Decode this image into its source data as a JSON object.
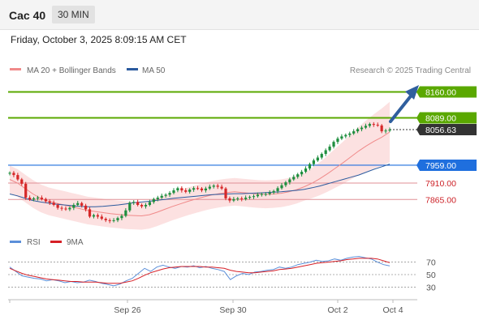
{
  "header": {
    "title": "Cac 40",
    "interval": "30 MIN",
    "timestamp": "Friday, October 3, 2025 8:09:15 AM CET"
  },
  "legend": {
    "ma20_label": "MA 20 + Bollinger Bands",
    "ma50_label": "MA 50",
    "credit": "Research © 2025 Trading Central"
  },
  "rsi_legend": {
    "rsi_label": "RSI",
    "ma_label": "9MA"
  },
  "colors": {
    "green_level": "#5aa800",
    "blue_level": "#1f6fde",
    "red_level": "#e08f96",
    "red_text": "#cc1f25",
    "current_price": "#333333",
    "ma20": "#f08a8a",
    "ma50": "#2b5a9e",
    "band_fill": "#fcdcdc",
    "candle_up": "#1e8e3e",
    "candle_down": "#d62728",
    "rsi": "#5b8fd9",
    "rsi_ma": "#d61f26",
    "arrow": "#2f5f9e"
  },
  "chart_data": {
    "type": "candlestick",
    "y_range": [
      7790,
      8190
    ],
    "x_labels": [
      "Sep 26",
      "Sep 30",
      "Oct 2",
      "Oct 4"
    ],
    "levels": [
      {
        "value": 8160.0,
        "label": "8160.00",
        "kind": "resistance"
      },
      {
        "value": 8089.0,
        "label": "8089.00",
        "kind": "resistance"
      },
      {
        "value": 8056.63,
        "label": "8056.63",
        "kind": "current"
      },
      {
        "value": 7959.0,
        "label": "7959.00",
        "kind": "pivot"
      },
      {
        "value": 7910.0,
        "label": "7910.00",
        "kind": "support"
      },
      {
        "value": 7865.0,
        "label": "7865.00",
        "kind": "support"
      }
    ],
    "close": [
      7938,
      7932,
      7920,
      7908,
      7870,
      7865,
      7868,
      7870,
      7866,
      7860,
      7856,
      7850,
      7842,
      7840,
      7838,
      7842,
      7850,
      7855,
      7848,
      7838,
      7818,
      7822,
      7818,
      7812,
      7808,
      7806,
      7808,
      7814,
      7820,
      7835,
      7856,
      7858,
      7850,
      7846,
      7850,
      7858,
      7866,
      7870,
      7875,
      7878,
      7883,
      7890,
      7896,
      7890,
      7886,
      7892,
      7896,
      7895,
      7890,
      7895,
      7900,
      7903,
      7900,
      7895,
      7868,
      7862,
      7866,
      7868,
      7866,
      7870,
      7872,
      7874,
      7878,
      7880,
      7880,
      7884,
      7888,
      7896,
      7904,
      7912,
      7920,
      7927,
      7934,
      7941,
      7950,
      7962,
      7972,
      7980,
      7990,
      8000,
      8010,
      8023,
      8032,
      8038,
      8042,
      8046,
      8052,
      8058,
      8062,
      8067,
      8072,
      8070,
      8068,
      8052,
      8054,
      8056.63
    ],
    "ma20": [
      7920,
      7910,
      7895,
      7880,
      7868,
      7860,
      7855,
      7850,
      7845,
      7840,
      7835,
      7832,
      7829,
      7826,
      7824,
      7822,
      7821,
      7820,
      7823,
      7830,
      7838,
      7846,
      7853,
      7860,
      7866,
      7872,
      7877,
      7881,
      7884,
      7886,
      7884,
      7882,
      7880,
      7879,
      7880,
      7882,
      7886,
      7892,
      7900,
      7910,
      7922,
      7936,
      7951,
      7966,
      7982,
      7998,
      8012,
      8025,
      8036,
      8050
    ],
    "ma50": [
      7880,
      7875,
      7868,
      7862,
      7858,
      7855,
      7852,
      7850,
      7848,
      7846,
      7845,
      7845,
      7846,
      7848,
      7850,
      7853,
      7856,
      7858,
      7860,
      7863,
      7865,
      7868,
      7870,
      7872,
      7874,
      7876,
      7878,
      7879,
      7880,
      7881,
      7881,
      7882,
      7883,
      7884,
      7885,
      7886,
      7888,
      7890,
      7893,
      7897,
      7902,
      7908,
      7914,
      7920,
      7926,
      7932,
      7940,
      7948,
      7955,
      7962
    ],
    "rsi": [
      62,
      55,
      48,
      46,
      44,
      43,
      40,
      42,
      40,
      37,
      39,
      37,
      38,
      41,
      39,
      36,
      34,
      32,
      35,
      40,
      44,
      52,
      60,
      55,
      62,
      65,
      62,
      60,
      63,
      62,
      64,
      61,
      63,
      60,
      58,
      55,
      42,
      48,
      52,
      50,
      54,
      55,
      57,
      58,
      62,
      60,
      62,
      66,
      68,
      70,
      73,
      71,
      72,
      75,
      73,
      76,
      78,
      79,
      77,
      75,
      70,
      66,
      64
    ],
    "rsi_ma": [
      60,
      56,
      52,
      49,
      47,
      45,
      43,
      42,
      41,
      40,
      39,
      39,
      38,
      38,
      38,
      37,
      36,
      36,
      36,
      38,
      40,
      44,
      49,
      53,
      56,
      59,
      61,
      62,
      63,
      63,
      63,
      63,
      62,
      62,
      61,
      60,
      57,
      55,
      54,
      53,
      53,
      54,
      55,
      56,
      58,
      59,
      60,
      62,
      64,
      66,
      68,
      69,
      70,
      71,
      72,
      74,
      75,
      76,
      76,
      76,
      75,
      72,
      69
    ],
    "rsi_levels": [
      70,
      50,
      30
    ]
  }
}
